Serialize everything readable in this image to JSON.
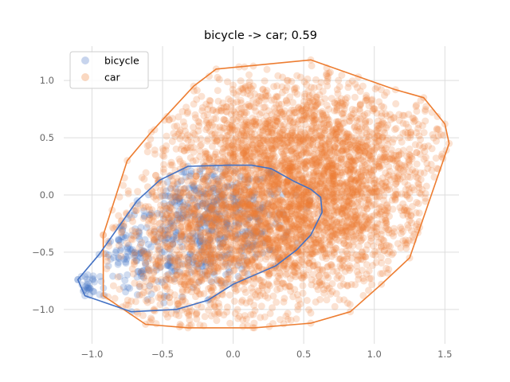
{
  "chart_data": {
    "type": "scatter",
    "title": "bicycle -> car; 0.59",
    "xlabel": "",
    "ylabel": "",
    "xlim": [
      -1.2,
      1.6
    ],
    "ylim": [
      -1.3,
      1.3
    ],
    "xticks": [
      -1.0,
      -0.5,
      0.0,
      0.5,
      1.0,
      1.5
    ],
    "xtick_labels": [
      "−1.0",
      "−0.5",
      "0.0",
      "0.5",
      "1.0",
      "1.5"
    ],
    "yticks": [
      -1.0,
      -0.5,
      0.0,
      0.5,
      1.0
    ],
    "ytick_labels": [
      "−1.0",
      "−0.5",
      "0.0",
      "0.5",
      "1.0"
    ],
    "grid": true,
    "legend_position": "top-left",
    "series": [
      {
        "name": "bicycle",
        "color": "#4472c4",
        "point_alpha": 0.25,
        "hull": [
          [
            -1.1,
            -0.74
          ],
          [
            -1.05,
            -0.88
          ],
          [
            -0.72,
            -1.02
          ],
          [
            -0.4,
            -1.0
          ],
          [
            -0.18,
            -0.92
          ],
          [
            0.0,
            -0.78
          ],
          [
            0.3,
            -0.62
          ],
          [
            0.45,
            -0.48
          ],
          [
            0.55,
            -0.35
          ],
          [
            0.63,
            -0.15
          ],
          [
            0.62,
            -0.02
          ],
          [
            0.55,
            0.05
          ],
          [
            0.43,
            0.12
          ],
          [
            0.27,
            0.23
          ],
          [
            0.13,
            0.26
          ],
          [
            -0.04,
            0.26
          ],
          [
            -0.32,
            0.25
          ],
          [
            -0.52,
            0.13
          ],
          [
            -0.68,
            -0.05
          ],
          [
            -0.95,
            -0.52
          ],
          [
            -1.1,
            -0.74
          ]
        ],
        "clusters": [
          {
            "cx": -0.18,
            "cy": -0.25,
            "sx": 0.3,
            "sy": 0.3,
            "n": 520
          },
          {
            "cx": -0.72,
            "cy": -0.55,
            "sx": 0.16,
            "sy": 0.2,
            "n": 90
          },
          {
            "cx": -1.03,
            "cy": -0.76,
            "sx": 0.04,
            "sy": 0.06,
            "n": 25
          }
        ]
      },
      {
        "name": "car",
        "color": "#ed7d31",
        "point_alpha": 0.22,
        "hull": [
          [
            -0.92,
            -0.35
          ],
          [
            -0.92,
            -0.88
          ],
          [
            -0.62,
            -1.13
          ],
          [
            -0.32,
            -1.16
          ],
          [
            0.15,
            -1.16
          ],
          [
            0.55,
            -1.12
          ],
          [
            0.83,
            -1.02
          ],
          [
            1.05,
            -0.78
          ],
          [
            1.25,
            -0.55
          ],
          [
            1.53,
            0.45
          ],
          [
            1.5,
            0.62
          ],
          [
            1.35,
            0.85
          ],
          [
            1.15,
            0.92
          ],
          [
            0.55,
            1.18
          ],
          [
            -0.12,
            1.1
          ],
          [
            -0.28,
            0.95
          ],
          [
            -0.58,
            0.55
          ],
          [
            -0.75,
            0.3
          ],
          [
            -0.92,
            -0.35
          ]
        ],
        "clusters": [
          {
            "cx": 0.3,
            "cy": -0.15,
            "sx": 0.45,
            "sy": 0.42,
            "n": 2600
          },
          {
            "cx": 0.85,
            "cy": 0.3,
            "sx": 0.35,
            "sy": 0.35,
            "n": 900
          },
          {
            "cx": 0.2,
            "cy": 0.6,
            "sx": 0.35,
            "sy": 0.25,
            "n": 450
          },
          {
            "cx": -0.3,
            "cy": -0.6,
            "sx": 0.3,
            "sy": 0.3,
            "n": 450
          }
        ]
      }
    ]
  }
}
